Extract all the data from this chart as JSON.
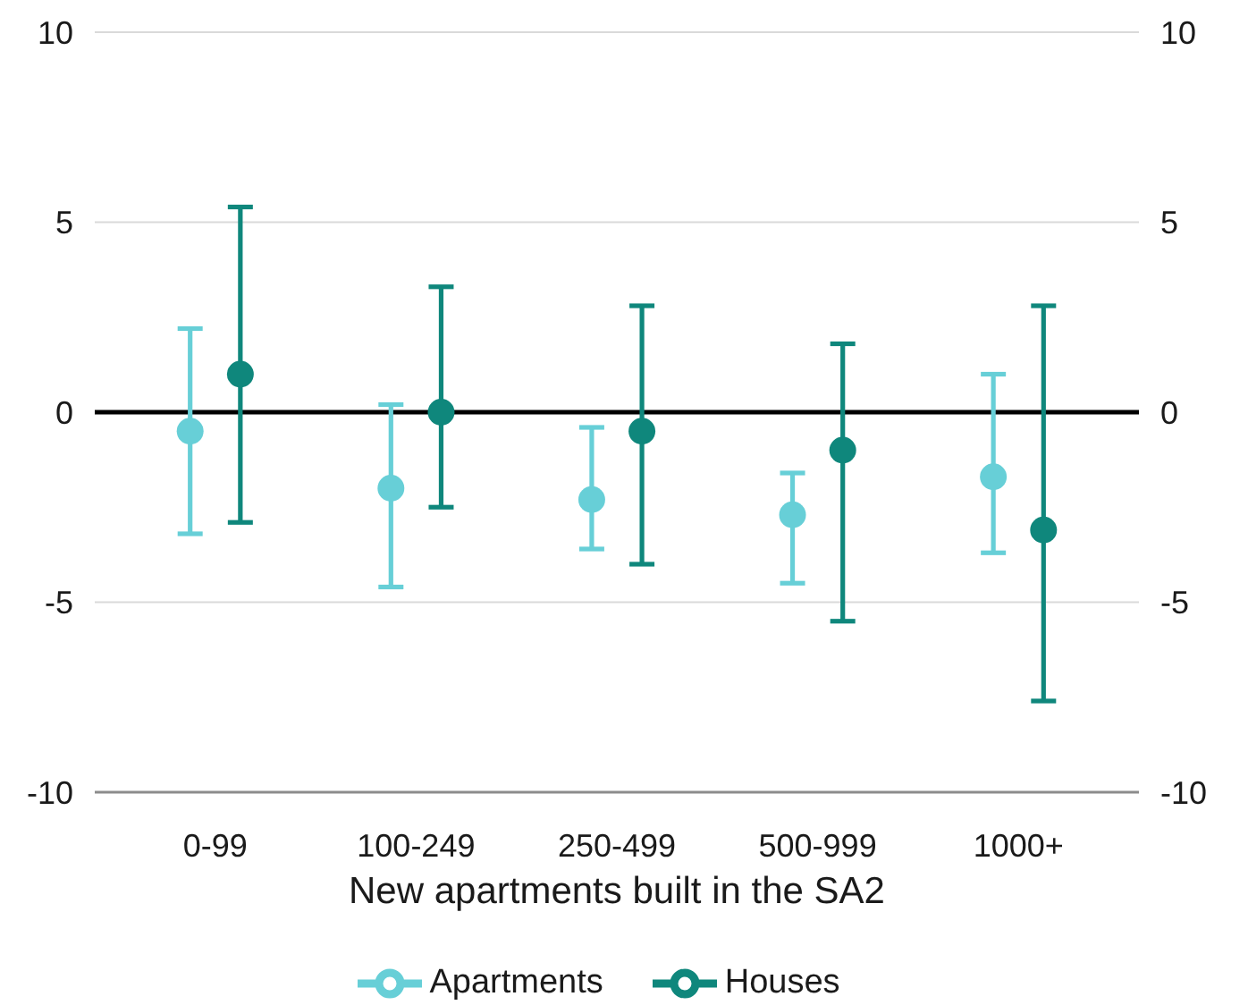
{
  "chart_data": {
    "type": "scatter",
    "xlabel": "New apartments built in the SA2",
    "categories": [
      "0-99",
      "100-249",
      "250-499",
      "500-999",
      "1000+"
    ],
    "series": [
      {
        "name": "Apartments",
        "color": "#67cfd7",
        "values": [
          -0.5,
          -2.0,
          -2.3,
          -2.7,
          -1.7
        ],
        "errors": [
          [
            -3.2,
            2.2
          ],
          [
            -4.6,
            0.2
          ],
          [
            -3.6,
            -0.4
          ],
          [
            -4.5,
            -1.6
          ],
          [
            -3.7,
            1.0
          ]
        ]
      },
      {
        "name": "Houses",
        "color": "#0f877c",
        "values": [
          1.0,
          0.0,
          -0.5,
          -1.0,
          -3.1
        ],
        "errors": [
          [
            -2.9,
            5.4
          ],
          [
            -2.5,
            3.3
          ],
          [
            -4.0,
            2.8
          ],
          [
            -5.5,
            1.8
          ],
          [
            -7.6,
            2.8
          ]
        ]
      }
    ],
    "ylim": [
      -10,
      10
    ],
    "yticks": [
      -10,
      -5,
      0,
      5,
      10
    ],
    "y2lim": [
      -10,
      10
    ],
    "y2ticks": [
      -10,
      -5,
      0,
      5,
      10
    ],
    "grid": "y",
    "legend": "bottom",
    "marker": "circle",
    "ref_lines": [
      {
        "axis": "y",
        "value": 0,
        "color": "#000000"
      }
    ]
  }
}
